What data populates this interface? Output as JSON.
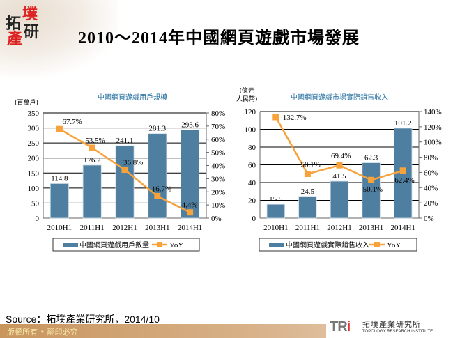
{
  "logo": {
    "chars": [
      "拓",
      "墣",
      "產",
      "研"
    ]
  },
  "title": "2010～2014年中國網頁遊戲市場發展",
  "source": "Source：拓墣產業研究所，2014/10",
  "footer": {
    "copyright": "版權所有 • 翻印必究",
    "brand_mark": "TRi",
    "brand_cn": "拓墣產業研究所",
    "brand_en": "TOPOLOGY RESEARCH INSTITUTE"
  },
  "colors": {
    "bar": "#4f7fa0",
    "line": "#f7a23b",
    "title": "#1f6b9c"
  },
  "chart_data": [
    {
      "type": "bar+line",
      "title": "中國網頁遊戲用戶規模",
      "ylabel": "(百萬戶)",
      "categories": [
        "2010H1",
        "2011H1",
        "2012H1",
        "2013H1",
        "2014H1"
      ],
      "series": [
        {
          "name": "中國網頁遊戲用戶數量",
          "type": "bar",
          "axis": "left",
          "values": [
            114.8,
            176.2,
            241.1,
            281.3,
            293.6
          ],
          "labels": [
            "114.8",
            "176.2",
            "241.1",
            "281.3",
            "293.6"
          ]
        },
        {
          "name": "YoY",
          "type": "line",
          "axis": "right",
          "values": [
            67.7,
            53.5,
            36.8,
            16.7,
            4.4
          ],
          "labels": [
            "67.7%",
            "53.5%",
            "36.8%",
            "16.7%",
            "4.4%"
          ]
        }
      ],
      "ylim": [
        0,
        350
      ],
      "yticks": [
        "0",
        "50",
        "100",
        "150",
        "200",
        "250",
        "300",
        "350"
      ],
      "y2lim": [
        0,
        80
      ],
      "y2ticks": [
        "0%",
        "10%",
        "20%",
        "30%",
        "40%",
        "50%",
        "60%",
        "70%",
        "80%"
      ],
      "grid": true,
      "legend": "bottom"
    },
    {
      "type": "bar+line",
      "title": "中國網頁遊戲市場實際銷售收入",
      "ylabel": "(億元人民幣)",
      "ylabel_lines": [
        "(億元",
        "人民幣)"
      ],
      "categories": [
        "2010H1",
        "2011H1",
        "2012H1",
        "2013H1",
        "2014H1"
      ],
      "series": [
        {
          "name": "中國網頁遊戲實際銷售收入",
          "type": "bar",
          "axis": "left",
          "values": [
            15.5,
            24.5,
            41.5,
            62.3,
            101.2
          ],
          "labels": [
            "15.5",
            "24.5",
            "41.5",
            "62.3",
            "101.2"
          ]
        },
        {
          "name": "YoY",
          "type": "line",
          "axis": "right",
          "values": [
            132.7,
            58.1,
            69.4,
            50.1,
            62.4
          ],
          "labels": [
            "132.7%",
            "58.1%",
            "69.4%",
            "50.1%",
            "62.4%"
          ]
        }
      ],
      "ylim": [
        0,
        120
      ],
      "yticks": [
        "0",
        "20",
        "40",
        "60",
        "80",
        "100",
        "120"
      ],
      "y2lim": [
        0,
        140
      ],
      "y2ticks": [
        "0%",
        "20%",
        "40%",
        "60%",
        "80%",
        "100%",
        "120%",
        "140%"
      ],
      "grid": true,
      "legend": "bottom"
    }
  ]
}
